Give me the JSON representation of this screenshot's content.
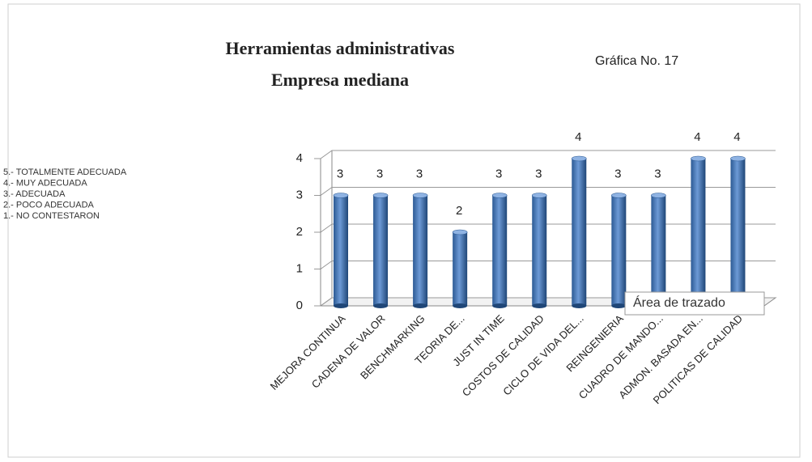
{
  "chart_data": {
    "type": "bar",
    "title": "Herramientas administrativas",
    "subtitle": "Empresa mediana",
    "annotation": "Gráfica No. 17",
    "tooltip": "Área de trazado",
    "legend_notes": [
      "5.- TOTALMENTE ADECUADA",
      "4.- MUY ADECUADA",
      "3.- ADECUADA",
      "2.- POCO ADECUADA",
      "1.- NO CONTESTARON"
    ],
    "categories": [
      "MEJORA CONTINUA",
      "CADENA DE VALOR",
      "BENCHMARKING",
      "TEORIA DE...",
      "JUST IN TIME",
      "COSTOS DE CALIDAD",
      "CICLO DE VIDA DEL...",
      "REINGENIERIA",
      "CUADRO DE MANDO...",
      "ADMON. BASADA EN...",
      "POLITICAS DE CALIDAD"
    ],
    "values": [
      3,
      3,
      3,
      2,
      3,
      3,
      4,
      3,
      3,
      4,
      4
    ],
    "color": "#4a7ebb",
    "ylim": [
      0,
      4
    ],
    "yticks": [
      0,
      1,
      2,
      3,
      4
    ],
    "grid": true
  }
}
